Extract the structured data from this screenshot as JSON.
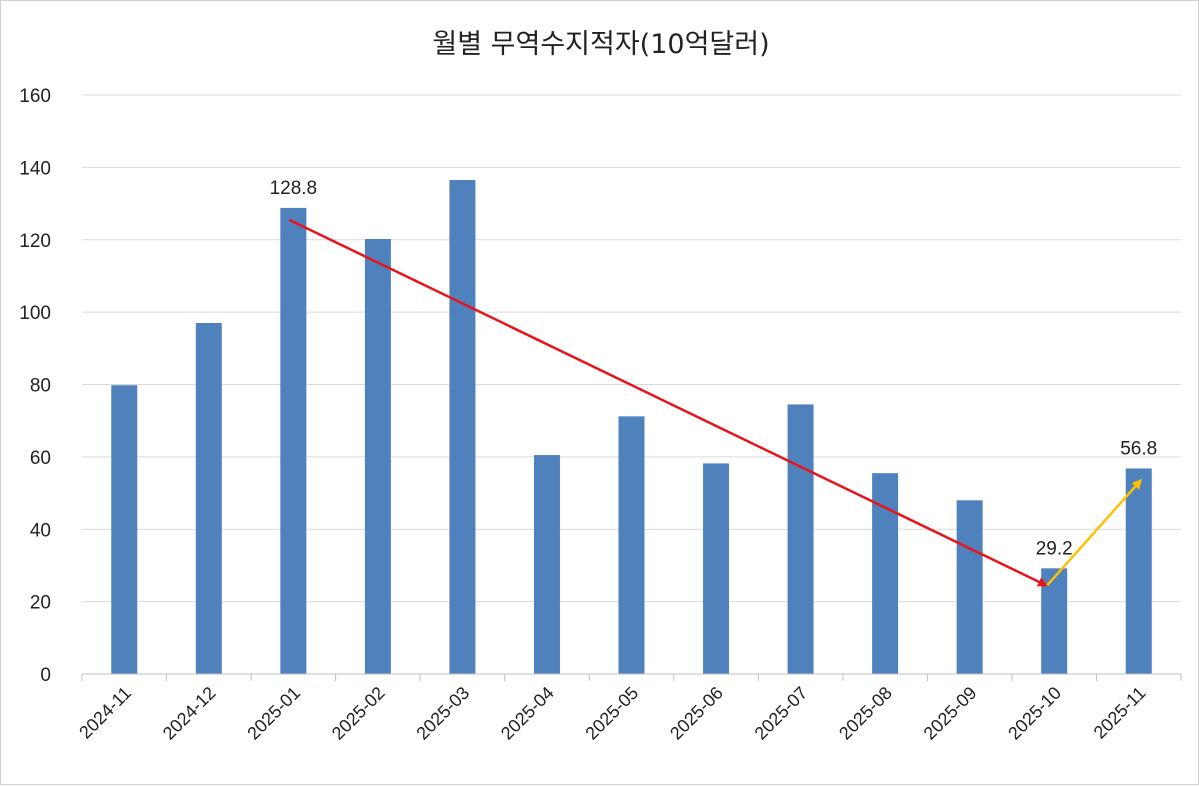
{
  "chart_data": {
    "type": "bar",
    "title": "월별 무역수지적자(10억달러)",
    "xlabel": "",
    "ylabel": "",
    "ylim": [
      0,
      160
    ],
    "yticks": [
      0,
      20,
      40,
      60,
      80,
      100,
      120,
      140,
      160
    ],
    "grid": true,
    "legend": "none",
    "categories": [
      "2024-11",
      "2024-12",
      "2025-01",
      "2025-02",
      "2025-03",
      "2025-04",
      "2025-05",
      "2025-06",
      "2025-07",
      "2025-08",
      "2025-09",
      "2025-10",
      "2025-11"
    ],
    "values": [
      79.8,
      97.0,
      128.8,
      120.2,
      136.5,
      60.5,
      71.2,
      58.2,
      74.5,
      55.5,
      48.0,
      29.2,
      56.8
    ],
    "bar_color": "#4f81bd",
    "data_labels": [
      {
        "category": "2025-01",
        "text": "128.8"
      },
      {
        "category": "2025-10",
        "text": "29.2"
      },
      {
        "category": "2025-11",
        "text": "56.8"
      }
    ],
    "annotations": [
      {
        "kind": "arrow",
        "color": "#e8141b",
        "from": {
          "category": "2025-01",
          "value": 125.5
        },
        "to": {
          "category": "2025-10",
          "value": 24.5
        }
      },
      {
        "kind": "arrow",
        "color": "#ffc000",
        "from": {
          "category": "2025-10",
          "value": 24.5
        },
        "to": {
          "category": "2025-11",
          "value": 53.5
        }
      }
    ]
  }
}
